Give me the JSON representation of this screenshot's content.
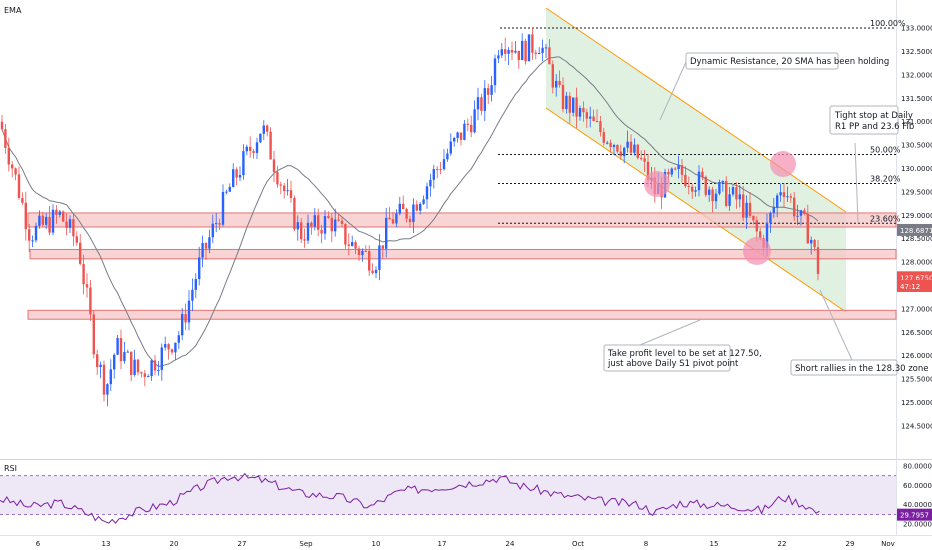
{
  "indicators": {
    "price_pane_label": "EMA",
    "rsi_pane_label": "RSI"
  },
  "price_axis": {
    "ticks": [
      "133.0000",
      "132.5000",
      "132.0000",
      "131.5000",
      "131.0000",
      "130.5000",
      "130.0000",
      "129.5000",
      "129.0000",
      "128.5000",
      "128.0000",
      "127.0000",
      "126.5000",
      "126.0000",
      "125.5000",
      "125.0000",
      "124.5000"
    ],
    "tick_values": [
      133.0,
      132.5,
      132.0,
      131.5,
      131.0,
      130.5,
      130.0,
      129.5,
      129.0,
      128.5,
      128.0,
      127.0,
      126.5,
      126.0,
      125.5,
      125.0,
      124.5
    ],
    "range": [
      124.2,
      133.3
    ],
    "badges": [
      {
        "text": "128.6871",
        "value": 128.6871,
        "color": "#787b86"
      },
      {
        "text": "127.6750",
        "value": 127.675,
        "color": "#ef5350"
      },
      {
        "text": "47:12",
        "value": 127.49,
        "color": "#ef5350"
      }
    ]
  },
  "rsi_axis": {
    "ticks": [
      "80.0000",
      "60.0000",
      "40.0000",
      "20.0000"
    ],
    "tick_values": [
      80,
      60,
      40,
      20
    ],
    "range": [
      14,
      84
    ],
    "current_badge": "29.7957",
    "current_value": 29.7957,
    "band": [
      30,
      70
    ]
  },
  "time_axis": {
    "labels": [
      "6",
      "13",
      "20",
      "27",
      "Sep",
      "10",
      "17",
      "24",
      "Oct",
      "8",
      "15",
      "22",
      "29",
      "Nov"
    ]
  },
  "levels": {
    "fib": [
      {
        "label": "100.00%",
        "value": 133.0
      },
      {
        "label": "50.00%",
        "value": 130.3
      },
      {
        "label": "38.20%",
        "value": 129.68
      },
      {
        "label": "23.60%",
        "value": 128.83
      }
    ],
    "zones": [
      {
        "name": "resistance-zone",
        "top": 129.05,
        "bottom": 128.75
      },
      {
        "name": "pivot-zone",
        "top": 128.27,
        "bottom": 128.07
      },
      {
        "name": "s1-zone",
        "top": 126.97,
        "bottom": 126.78
      }
    ]
  },
  "annotations": {
    "dynamic_resistance": "Dynamic Resistance, 20 SMA has been holding",
    "tight_stop_line1": "Tight stop at Daily",
    "tight_stop_line2": "R1 PP and 23.6 Fib",
    "take_profit_line1": "Take profit level to be set at 127.50,",
    "take_profit_line2": "just above Daily S1 pivot point",
    "short_rallies": "Short rallies in the 128.30 zone"
  },
  "colors": {
    "up": "#2962ff",
    "down": "#ef5350",
    "ema": "#787b86",
    "channel_fill": "#c8e6c9",
    "channel_line": "#ff9800",
    "zone_fill": "#f5c6c6",
    "zone_border": "#e57373",
    "rsi_line": "#7b1fa2",
    "rsi_band": "#ede7f6",
    "circle": "#f48fb1"
  },
  "chart_data": {
    "type": "candlestick",
    "series": [
      {
        "name": "EMA",
        "role": "moving_average"
      },
      {
        "name": "RSI",
        "role": "oscillator"
      }
    ],
    "ylim": [
      124.2,
      133.3
    ],
    "last_price": 127.675,
    "price_path_keypoints": [
      {
        "x": "start",
        "close": 131.0
      },
      {
        "x": "early Aug",
        "close": 128.6
      },
      {
        "x": "Aug 13",
        "close": 125.2
      },
      {
        "x": "Aug 20",
        "close": 126.2
      },
      {
        "x": "Aug 27",
        "close": 130.9
      },
      {
        "x": "Sep 5",
        "close": 128.7
      },
      {
        "x": "Sep 10",
        "close": 128.0
      },
      {
        "x": "Sep 17",
        "close": 129.4
      },
      {
        "x": "Sep 24",
        "close": 132.8
      },
      {
        "x": "Oct 1",
        "close": 131.6
      },
      {
        "x": "Oct 8",
        "close": 129.6
      },
      {
        "x": "Oct 15",
        "close": 129.5
      },
      {
        "x": "Oct 19",
        "close": 128.4
      },
      {
        "x": "Oct 22",
        "close": 129.8
      },
      {
        "x": "Oct 25",
        "close": 127.7
      }
    ],
    "rsi_path_keypoints": [
      {
        "x": "Aug 13",
        "value": 22
      },
      {
        "x": "Aug 27",
        "value": 70
      },
      {
        "x": "Sep 24",
        "value": 68
      },
      {
        "x": "Oct 8",
        "value": 32
      },
      {
        "x": "Oct 25",
        "value": 29.8
      }
    ]
  }
}
